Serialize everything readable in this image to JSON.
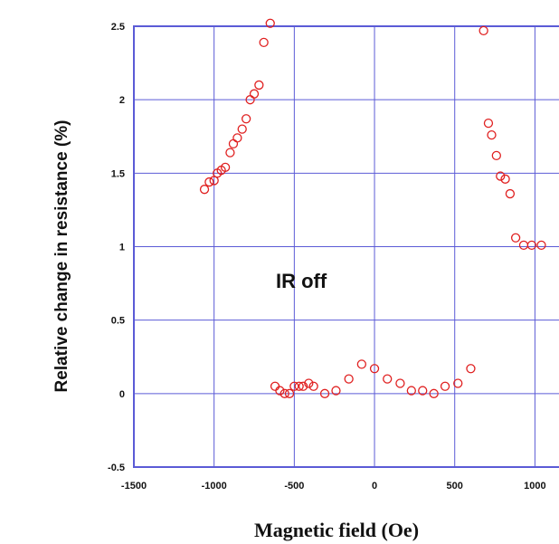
{
  "chart_data": {
    "type": "scatter",
    "xlabel": "Magnetic field (Oe)",
    "ylabel": "Relative change in resistance (%)",
    "annotation": "IR off",
    "xlim": [
      -1500,
      1150
    ],
    "ylim": [
      -0.5,
      2.5
    ],
    "xticks": [
      -1500,
      -1000,
      -500,
      0,
      500,
      1000
    ],
    "yticks": [
      -0.5,
      0,
      0.5,
      1,
      1.5,
      2,
      2.5
    ],
    "x_tick_labels": [
      "-1500",
      "-1000",
      "-500",
      "0",
      "500",
      "1000"
    ],
    "y_tick_labels": [
      "-0.5",
      "0",
      "0.5",
      "1",
      "1.5",
      "2",
      "2.5"
    ],
    "grid": true,
    "marker_color": "#e02020",
    "grid_color": "#5b5bd6",
    "series": [
      {
        "x": [
          -1060,
          -1030,
          -1000,
          -980,
          -955,
          -930,
          -900,
          -880,
          -855,
          -825,
          -800,
          -775,
          -750,
          -720,
          -690,
          -650,
          -620,
          -590,
          -560,
          -530,
          -500,
          -470,
          -445,
          -410,
          -380,
          -310,
          -240,
          -160,
          -80,
          0,
          80,
          160,
          230,
          300,
          370,
          440,
          520,
          600,
          680,
          710,
          730,
          760,
          785,
          815,
          845,
          880,
          930,
          980,
          1040
        ],
        "y": [
          1.39,
          1.44,
          1.45,
          1.5,
          1.52,
          1.54,
          1.64,
          1.7,
          1.74,
          1.8,
          1.87,
          2.0,
          2.04,
          2.1,
          2.39,
          2.52,
          0.05,
          0.02,
          0.0,
          0.0,
          0.05,
          0.05,
          0.05,
          0.07,
          0.05,
          0.0,
          0.02,
          0.1,
          0.2,
          0.17,
          0.1,
          0.07,
          0.02,
          0.02,
          0.0,
          0.05,
          0.07,
          0.17,
          2.47,
          1.84,
          1.76,
          1.62,
          1.48,
          1.46,
          1.36,
          1.06,
          1.01,
          1.01,
          1.01
        ]
      }
    ]
  }
}
